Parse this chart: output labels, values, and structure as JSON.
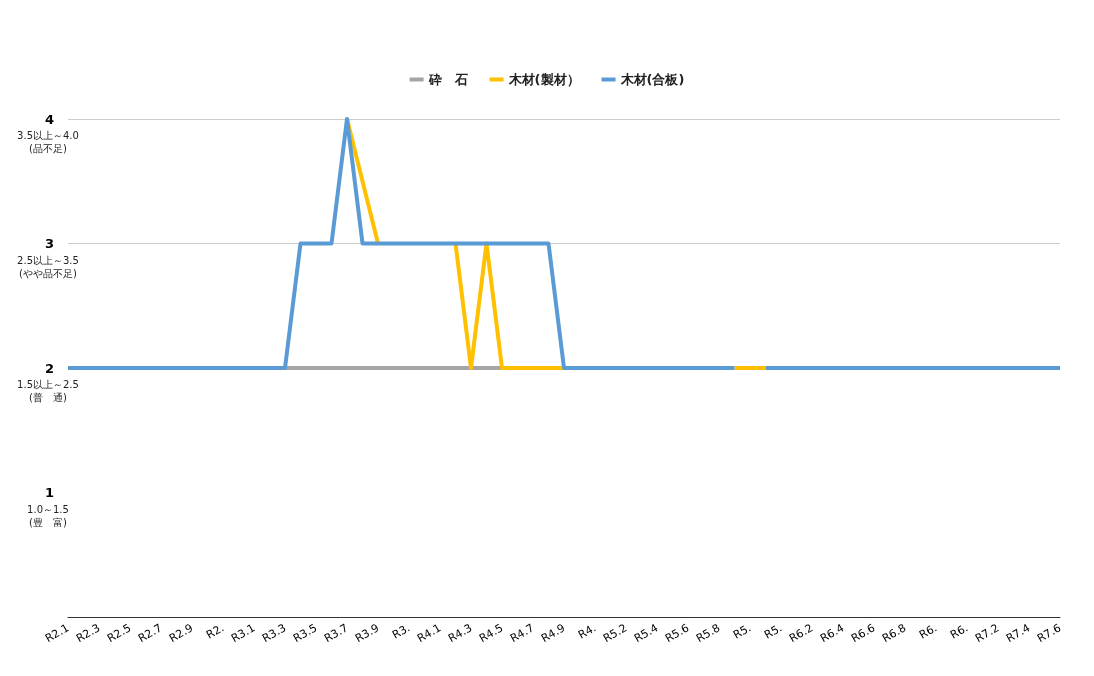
{
  "chart_data": {
    "type": "line",
    "categories": [
      "R2.1",
      null,
      "R2.3",
      null,
      "R2.5",
      null,
      "R2.7",
      null,
      "R2.9",
      null,
      "R2.",
      null,
      "R3.1",
      null,
      "R3.3",
      null,
      "R3.5",
      null,
      "R3.7",
      null,
      "R3.9",
      null,
      "R3.",
      null,
      "R4.1",
      null,
      "R4.3",
      null,
      "R4.5",
      null,
      "R4.7",
      null,
      "R4.9",
      null,
      "R4.",
      null,
      "R5.2",
      null,
      "R5.4",
      null,
      "R5.6",
      null,
      "R5.8",
      null,
      "R5.",
      null,
      "R5.",
      null,
      "R6.2",
      null,
      "R6.4",
      null,
      "R6.6",
      null,
      "R6.8",
      null,
      "R6.",
      null,
      "R6.",
      null,
      "R7.2",
      null,
      "R7.4",
      null,
      "R7.6"
    ],
    "series": [
      {
        "name": "砕　石",
        "color": "#a5a5a5",
        "values": [
          null,
          null,
          null,
          null,
          null,
          null,
          null,
          null,
          null,
          null,
          null,
          null,
          null,
          null,
          2,
          2,
          2,
          2,
          2,
          2,
          2,
          2,
          2,
          2,
          2,
          2,
          2,
          2,
          2,
          null,
          null,
          null,
          null,
          null,
          null,
          null,
          null,
          null,
          null,
          null,
          null,
          null,
          null,
          null,
          null,
          null,
          null,
          null,
          null,
          null,
          null,
          null,
          null,
          null,
          null,
          null,
          null,
          null,
          null,
          null,
          null,
          null,
          null,
          null,
          null
        ]
      },
      {
        "name": "木材(製材）",
        "color": "#ffc000",
        "values": [
          null,
          null,
          null,
          null,
          null,
          null,
          null,
          null,
          null,
          null,
          null,
          null,
          null,
          null,
          null,
          null,
          null,
          null,
          4,
          3.5,
          3,
          null,
          null,
          null,
          null,
          3,
          2,
          3,
          2,
          2,
          2,
          2,
          2,
          null,
          null,
          null,
          null,
          null,
          null,
          null,
          null,
          null,
          null,
          2,
          2,
          2,
          null,
          null,
          null,
          null,
          null,
          null,
          null,
          null,
          null,
          null,
          null,
          null,
          null,
          null,
          null,
          null,
          null,
          null,
          null
        ]
      },
      {
        "name": "木材(合板)",
        "color": "#5b9bd5",
        "values": [
          2,
          2,
          2,
          2,
          2,
          2,
          2,
          2,
          2,
          2,
          2,
          2,
          2,
          2,
          2,
          3,
          3,
          3,
          4,
          3,
          3,
          3,
          3,
          3,
          3,
          3,
          3,
          3,
          3,
          3,
          3,
          3,
          2,
          2,
          2,
          2,
          2,
          2,
          2,
          2,
          2,
          2,
          2,
          2,
          null,
          2,
          2,
          2,
          2,
          2,
          2,
          2,
          2,
          2,
          2,
          2,
          2,
          2,
          2,
          2,
          2,
          2,
          2,
          2,
          2
        ]
      }
    ],
    "ylim": [
      0,
      4
    ],
    "yticks": [
      1,
      2,
      3,
      4
    ],
    "annotations": [
      "1.0～1.5\n(豊　富)",
      "1.5以上～2.5\n(普　通)",
      "2.5以上～3.5\n(やや品不足)",
      "3.5以上～4.0\n(品不足)"
    ],
    "grid": "y",
    "legend": "top",
    "marker": "none",
    "line_style": "solid"
  }
}
